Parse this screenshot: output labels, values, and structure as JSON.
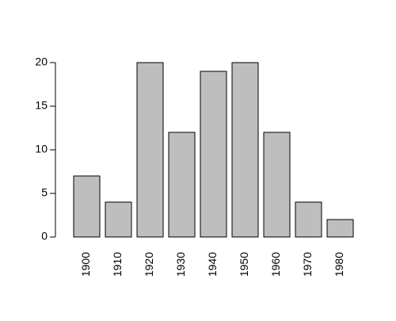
{
  "chart_data": {
    "type": "bar",
    "categories": [
      "1900",
      "1910",
      "1920",
      "1930",
      "1940",
      "1950",
      "1960",
      "1970",
      "1980"
    ],
    "values": [
      7,
      4,
      20,
      12,
      19,
      20,
      12,
      4,
      2
    ],
    "color": "#bebebe",
    "ylim": [
      0,
      20
    ],
    "yticks": [
      0,
      5,
      10,
      15,
      20
    ]
  }
}
